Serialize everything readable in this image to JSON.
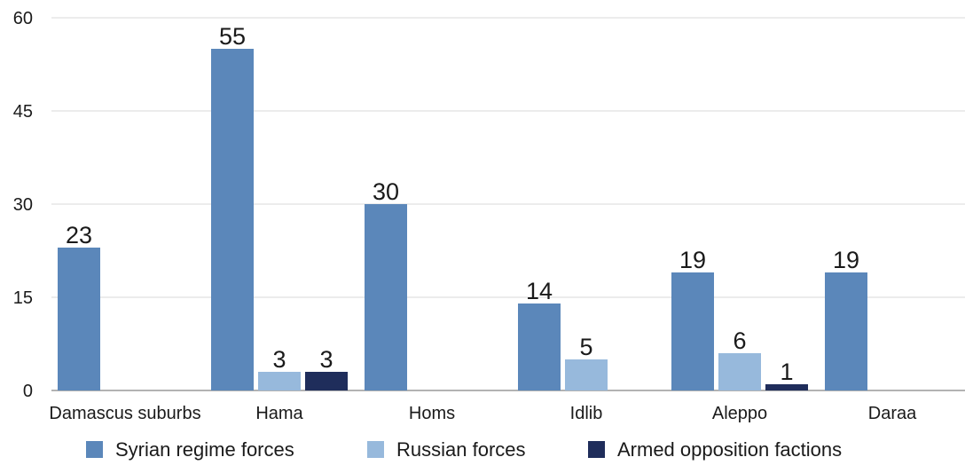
{
  "chart_data": {
    "type": "bar",
    "categories": [
      "Damascus suburbs",
      "Hama",
      "Homs",
      "Idlib",
      "Aleppo",
      "Daraa"
    ],
    "series": [
      {
        "name": "Syrian regime forces",
        "color": "#5b87ba",
        "values": [
          23,
          55,
          30,
          14,
          19,
          19
        ]
      },
      {
        "name": "Russian forces",
        "color": "#97b9dc",
        "values": [
          null,
          3,
          null,
          5,
          6,
          null
        ]
      },
      {
        "name": "Armed opposition factions",
        "color": "#1f2d5b",
        "values": [
          null,
          3,
          null,
          null,
          1,
          null
        ]
      }
    ],
    "yticks": [
      0,
      15,
      30,
      45,
      60
    ],
    "ylim": [
      0,
      60
    ],
    "grid": true,
    "legend_position": "bottom",
    "data_labels": true
  }
}
